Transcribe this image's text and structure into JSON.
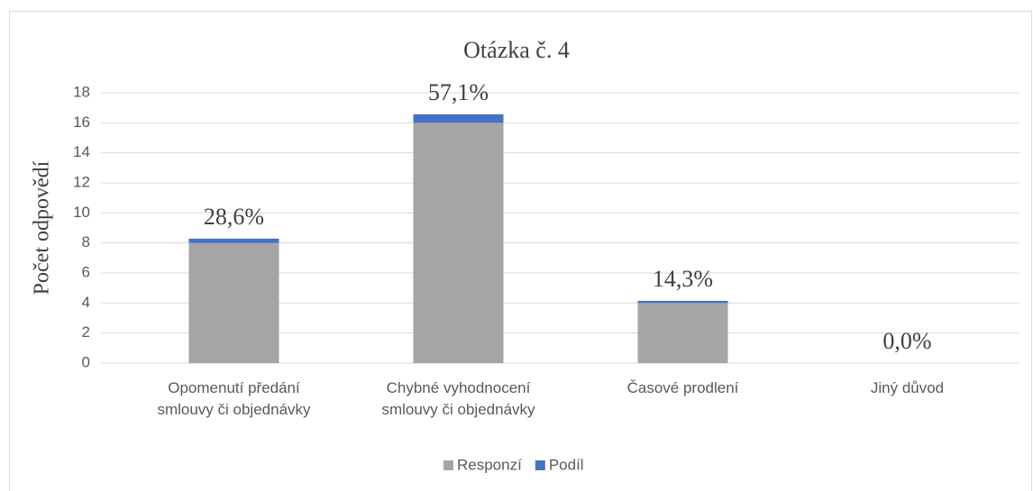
{
  "chart_data": {
    "type": "stacked_bar",
    "title": "Otázka č. 4",
    "y_label": "Počet odpovědí",
    "categories": [
      "Opomenutí předání smlouvy či objednávky",
      "Chybné vyhodnocení smlouvy či objednávky",
      "Časové prodlení",
      "Jiný důvod"
    ],
    "series": [
      {
        "name": "Responzí",
        "color": "#a5a5a5",
        "values": [
          8,
          16,
          4,
          0
        ]
      },
      {
        "name": "Podíl",
        "color": "#4472c4",
        "values": [
          0.286,
          0.571,
          0.143,
          0
        ],
        "value_labels": [
          "28,6%",
          "57,1%",
          "14,3%",
          "0,0%"
        ]
      }
    ],
    "ylim": [
      0,
      18
    ],
    "yticks": [
      0,
      2,
      4,
      6,
      8,
      10,
      12,
      14,
      16,
      18
    ],
    "grid": true,
    "legend": "bottom"
  }
}
